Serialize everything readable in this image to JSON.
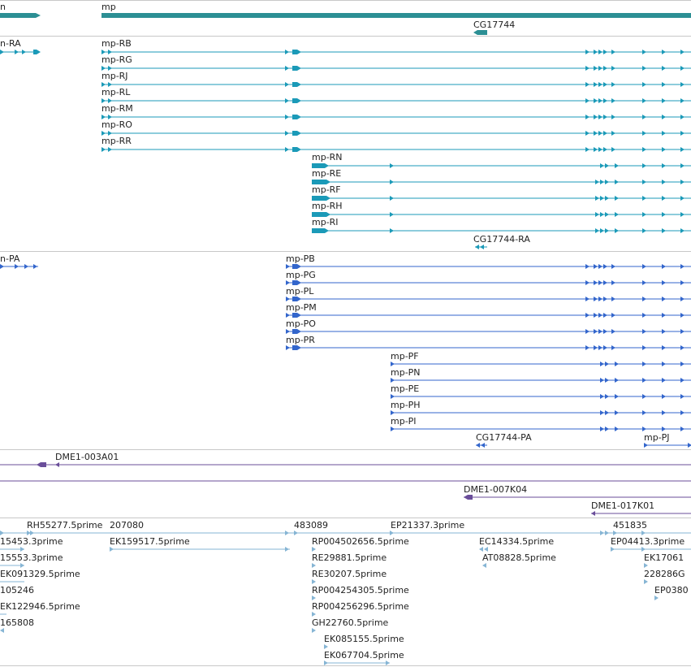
{
  "colors": {
    "gene": "#2c8f94",
    "mrna": "#1b9ab8",
    "protein": "#3366cc",
    "clone": "#6a4e9a",
    "est": "#86b5d4",
    "separator": "#c8c8c8",
    "text": "#222222"
  },
  "tracks": {
    "gene": {
      "labels": {
        "left": "n",
        "main": "mp",
        "cg": "CG17744"
      }
    },
    "mrna": {
      "left_label": "n-RA",
      "transcripts_a": [
        "mp-RB",
        "mp-RG",
        "mp-RJ",
        "mp-RL",
        "mp-RM",
        "mp-RO",
        "mp-RR"
      ],
      "transcripts_b": [
        "mp-RN",
        "mp-RE",
        "mp-RF",
        "mp-RH",
        "mp-RI"
      ],
      "cg_label": "CG17744-RA"
    },
    "protein": {
      "left_label": "n-PA",
      "proteins_a": [
        "mp-PB",
        "mp-PG",
        "mp-PL",
        "mp-PM",
        "mp-PO",
        "mp-PR"
      ],
      "proteins_b": [
        "mp-PF",
        "mp-PN",
        "mp-PE",
        "mp-PH",
        "mp-PI"
      ],
      "cg_label": "CG17744-PA",
      "pj_label": "mp-PJ"
    },
    "clones": {
      "a": "DME1-003A01",
      "b": "DME1-007K04",
      "c": "DME1-017K01"
    },
    "ests": {
      "row0": [
        "RH55277.5prime",
        "207080",
        "483089",
        "EP21337.3prime",
        "451835"
      ],
      "row1": [
        "15453.3prime",
        "EK159517.5prime",
        "RP004502656.5prime",
        "EC14334.5prime",
        "EP04413.3prime"
      ],
      "row2": [
        "15553.3prime",
        "RE29881.5prime",
        "AT08828.5prime",
        "EK17061"
      ],
      "row3": [
        "EK091329.5prime",
        "RE30207.5prime",
        "228286G"
      ],
      "row4": [
        "105246",
        "RP004254305.5prime",
        "EP0380"
      ],
      "row5": [
        "EK122946.5prime",
        "RP004256296.5prime"
      ],
      "row6": [
        "165808",
        "GH22760.5prime"
      ],
      "row7": [
        "EK085155.5prime"
      ],
      "row8": [
        "EK067704.5prime"
      ]
    }
  }
}
